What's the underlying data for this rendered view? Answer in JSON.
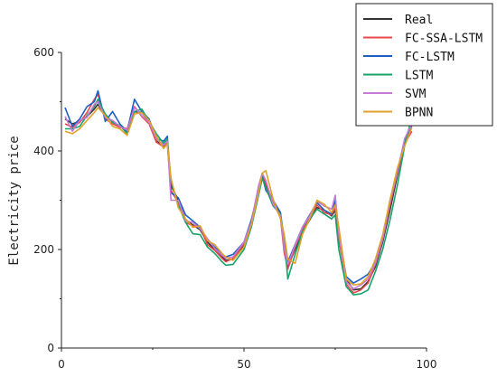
{
  "chart_data": {
    "type": "line",
    "title": "",
    "xlabel": "",
    "ylabel": "Electricity price",
    "xlim": [
      0,
      100
    ],
    "ylim": [
      0,
      600
    ],
    "xticks": [
      0,
      50,
      100
    ],
    "yticks": [
      0,
      200,
      400,
      600
    ],
    "grid": false,
    "legend_position": "top-right",
    "series": [
      {
        "name": "Real",
        "color": "#333333",
        "values": [
          [
            1,
            465
          ],
          [
            3,
            455
          ],
          [
            5,
            460
          ],
          [
            7,
            470
          ],
          [
            9,
            485
          ],
          [
            10,
            495
          ],
          [
            12,
            470
          ],
          [
            14,
            460
          ],
          [
            16,
            450
          ],
          [
            18,
            440
          ],
          [
            20,
            480
          ],
          [
            22,
            478
          ],
          [
            24,
            460
          ],
          [
            26,
            420
          ],
          [
            28,
            410
          ],
          [
            29,
            420
          ],
          [
            30,
            330
          ],
          [
            32,
            300
          ],
          [
            34,
            260
          ],
          [
            36,
            250
          ],
          [
            38,
            240
          ],
          [
            40,
            215
          ],
          [
            42,
            200
          ],
          [
            44,
            185
          ],
          [
            45,
            178
          ],
          [
            47,
            180
          ],
          [
            50,
            210
          ],
          [
            52,
            255
          ],
          [
            54,
            320
          ],
          [
            55,
            345
          ],
          [
            56,
            330
          ],
          [
            58,
            300
          ],
          [
            60,
            270
          ],
          [
            61,
            200
          ],
          [
            62,
            165
          ],
          [
            64,
            200
          ],
          [
            66,
            235
          ],
          [
            68,
            260
          ],
          [
            70,
            285
          ],
          [
            72,
            280
          ],
          [
            74,
            268
          ],
          [
            75,
            280
          ],
          [
            76,
            220
          ],
          [
            78,
            140
          ],
          [
            80,
            118
          ],
          [
            82,
            120
          ],
          [
            84,
            135
          ],
          [
            86,
            165
          ],
          [
            88,
            215
          ],
          [
            90,
            280
          ],
          [
            92,
            350
          ],
          [
            94,
            420
          ],
          [
            96,
            448
          ]
        ]
      },
      {
        "name": "FC-SSA-LSTM",
        "color": "#e8474d",
        "values": [
          [
            1,
            455
          ],
          [
            3,
            448
          ],
          [
            5,
            458
          ],
          [
            7,
            478
          ],
          [
            9,
            505
          ],
          [
            10,
            515
          ],
          [
            12,
            465
          ],
          [
            14,
            455
          ],
          [
            16,
            448
          ],
          [
            18,
            445
          ],
          [
            20,
            490
          ],
          [
            22,
            470
          ],
          [
            24,
            455
          ],
          [
            26,
            418
          ],
          [
            28,
            408
          ],
          [
            29,
            415
          ],
          [
            30,
            320
          ],
          [
            32,
            295
          ],
          [
            34,
            255
          ],
          [
            36,
            248
          ],
          [
            38,
            245
          ],
          [
            40,
            210
          ],
          [
            42,
            198
          ],
          [
            44,
            182
          ],
          [
            45,
            175
          ],
          [
            47,
            182
          ],
          [
            50,
            212
          ],
          [
            52,
            258
          ],
          [
            54,
            325
          ],
          [
            55,
            348
          ],
          [
            56,
            335
          ],
          [
            58,
            295
          ],
          [
            60,
            265
          ],
          [
            61,
            195
          ],
          [
            62,
            160
          ],
          [
            64,
            205
          ],
          [
            66,
            240
          ],
          [
            68,
            265
          ],
          [
            70,
            290
          ],
          [
            72,
            275
          ],
          [
            74,
            270
          ],
          [
            75,
            285
          ],
          [
            76,
            225
          ],
          [
            78,
            130
          ],
          [
            80,
            112
          ],
          [
            82,
            118
          ],
          [
            84,
            132
          ],
          [
            86,
            170
          ],
          [
            88,
            220
          ],
          [
            90,
            290
          ],
          [
            92,
            355
          ],
          [
            94,
            415
          ],
          [
            96,
            440
          ]
        ]
      },
      {
        "name": "FC-LSTM",
        "color": "#1f5fc4",
        "values": [
          [
            1,
            488
          ],
          [
            3,
            450
          ],
          [
            5,
            465
          ],
          [
            7,
            490
          ],
          [
            9,
            500
          ],
          [
            10,
            522
          ],
          [
            12,
            460
          ],
          [
            14,
            480
          ],
          [
            16,
            455
          ],
          [
            18,
            440
          ],
          [
            20,
            505
          ],
          [
            22,
            480
          ],
          [
            24,
            465
          ],
          [
            26,
            425
          ],
          [
            28,
            420
          ],
          [
            29,
            430
          ],
          [
            30,
            315
          ],
          [
            32,
            305
          ],
          [
            34,
            270
          ],
          [
            36,
            258
          ],
          [
            38,
            245
          ],
          [
            40,
            220
          ],
          [
            42,
            205
          ],
          [
            44,
            190
          ],
          [
            45,
            185
          ],
          [
            47,
            190
          ],
          [
            50,
            215
          ],
          [
            52,
            260
          ],
          [
            54,
            320
          ],
          [
            55,
            350
          ],
          [
            56,
            320
          ],
          [
            58,
            300
          ],
          [
            60,
            275
          ],
          [
            61,
            215
          ],
          [
            62,
            175
          ],
          [
            64,
            210
          ],
          [
            66,
            245
          ],
          [
            68,
            270
          ],
          [
            70,
            295
          ],
          [
            72,
            280
          ],
          [
            74,
            272
          ],
          [
            75,
            300
          ],
          [
            76,
            235
          ],
          [
            78,
            145
          ],
          [
            80,
            132
          ],
          [
            82,
            140
          ],
          [
            84,
            150
          ],
          [
            86,
            175
          ],
          [
            88,
            225
          ],
          [
            90,
            300
          ],
          [
            92,
            360
          ],
          [
            94,
            420
          ],
          [
            96,
            452
          ]
        ]
      },
      {
        "name": "LSTM",
        "color": "#16a36a",
        "values": [
          [
            1,
            445
          ],
          [
            3,
            445
          ],
          [
            5,
            450
          ],
          [
            7,
            472
          ],
          [
            9,
            490
          ],
          [
            10,
            505
          ],
          [
            12,
            475
          ],
          [
            14,
            458
          ],
          [
            16,
            452
          ],
          [
            18,
            435
          ],
          [
            20,
            480
          ],
          [
            22,
            485
          ],
          [
            24,
            460
          ],
          [
            26,
            435
          ],
          [
            28,
            415
          ],
          [
            29,
            425
          ],
          [
            30,
            340
          ],
          [
            32,
            290
          ],
          [
            34,
            255
          ],
          [
            36,
            232
          ],
          [
            38,
            230
          ],
          [
            40,
            205
          ],
          [
            42,
            192
          ],
          [
            44,
            175
          ],
          [
            45,
            168
          ],
          [
            47,
            170
          ],
          [
            50,
            200
          ],
          [
            52,
            245
          ],
          [
            54,
            310
          ],
          [
            55,
            345
          ],
          [
            56,
            325
          ],
          [
            58,
            288
          ],
          [
            60,
            272
          ],
          [
            61,
            225
          ],
          [
            62,
            140
          ],
          [
            64,
            190
          ],
          [
            66,
            235
          ],
          [
            68,
            262
          ],
          [
            70,
            282
          ],
          [
            72,
            272
          ],
          [
            74,
            262
          ],
          [
            75,
            270
          ],
          [
            76,
            200
          ],
          [
            78,
            125
          ],
          [
            80,
            108
          ],
          [
            82,
            110
          ],
          [
            84,
            118
          ],
          [
            86,
            155
          ],
          [
            88,
            200
          ],
          [
            90,
            260
          ],
          [
            92,
            330
          ],
          [
            94,
            410
          ],
          [
            96,
            470
          ]
        ]
      },
      {
        "name": "SVM",
        "color": "#c77ad6",
        "values": [
          [
            1,
            470
          ],
          [
            3,
            440
          ],
          [
            5,
            462
          ],
          [
            7,
            468
          ],
          [
            9,
            495
          ],
          [
            10,
            500
          ],
          [
            12,
            468
          ],
          [
            14,
            462
          ],
          [
            16,
            450
          ],
          [
            18,
            442
          ],
          [
            20,
            488
          ],
          [
            22,
            472
          ],
          [
            24,
            458
          ],
          [
            26,
            425
          ],
          [
            28,
            412
          ],
          [
            29,
            420
          ],
          [
            30,
            300
          ],
          [
            32,
            300
          ],
          [
            34,
            258
          ],
          [
            36,
            255
          ],
          [
            38,
            242
          ],
          [
            40,
            222
          ],
          [
            42,
            202
          ],
          [
            44,
            188
          ],
          [
            45,
            182
          ],
          [
            47,
            185
          ],
          [
            50,
            215
          ],
          [
            52,
            255
          ],
          [
            54,
            330
          ],
          [
            55,
            355
          ],
          [
            56,
            340
          ],
          [
            58,
            292
          ],
          [
            60,
            268
          ],
          [
            61,
            205
          ],
          [
            62,
            170
          ],
          [
            64,
            208
          ],
          [
            66,
            245
          ],
          [
            68,
            268
          ],
          [
            70,
            298
          ],
          [
            72,
            288
          ],
          [
            74,
            282
          ],
          [
            75,
            310
          ],
          [
            76,
            230
          ],
          [
            78,
            135
          ],
          [
            80,
            120
          ],
          [
            82,
            128
          ],
          [
            84,
            140
          ],
          [
            86,
            172
          ],
          [
            88,
            222
          ],
          [
            90,
            295
          ],
          [
            92,
            358
          ],
          [
            94,
            425
          ],
          [
            96,
            455
          ]
        ]
      },
      {
        "name": "BPNN",
        "color": "#e0a12b",
        "values": [
          [
            1,
            440
          ],
          [
            3,
            435
          ],
          [
            5,
            445
          ],
          [
            7,
            462
          ],
          [
            9,
            478
          ],
          [
            10,
            488
          ],
          [
            12,
            472
          ],
          [
            14,
            450
          ],
          [
            16,
            445
          ],
          [
            18,
            432
          ],
          [
            20,
            475
          ],
          [
            22,
            478
          ],
          [
            24,
            462
          ],
          [
            26,
            430
          ],
          [
            28,
            405
          ],
          [
            29,
            415
          ],
          [
            30,
            345
          ],
          [
            32,
            285
          ],
          [
            34,
            262
          ],
          [
            36,
            245
          ],
          [
            38,
            248
          ],
          [
            40,
            218
          ],
          [
            42,
            210
          ],
          [
            44,
            192
          ],
          [
            45,
            185
          ],
          [
            47,
            178
          ],
          [
            50,
            205
          ],
          [
            52,
            250
          ],
          [
            54,
            315
          ],
          [
            55,
            355
          ],
          [
            56,
            360
          ],
          [
            58,
            302
          ],
          [
            60,
            262
          ],
          [
            61,
            232
          ],
          [
            62,
            180
          ],
          [
            64,
            172
          ],
          [
            66,
            230
          ],
          [
            68,
            262
          ],
          [
            70,
            300
          ],
          [
            72,
            292
          ],
          [
            74,
            275
          ],
          [
            75,
            290
          ],
          [
            76,
            245
          ],
          [
            78,
            140
          ],
          [
            80,
            128
          ],
          [
            82,
            130
          ],
          [
            84,
            145
          ],
          [
            86,
            180
          ],
          [
            88,
            230
          ],
          [
            90,
            300
          ],
          [
            92,
            365
          ],
          [
            94,
            410
          ],
          [
            96,
            448
          ]
        ]
      }
    ]
  }
}
